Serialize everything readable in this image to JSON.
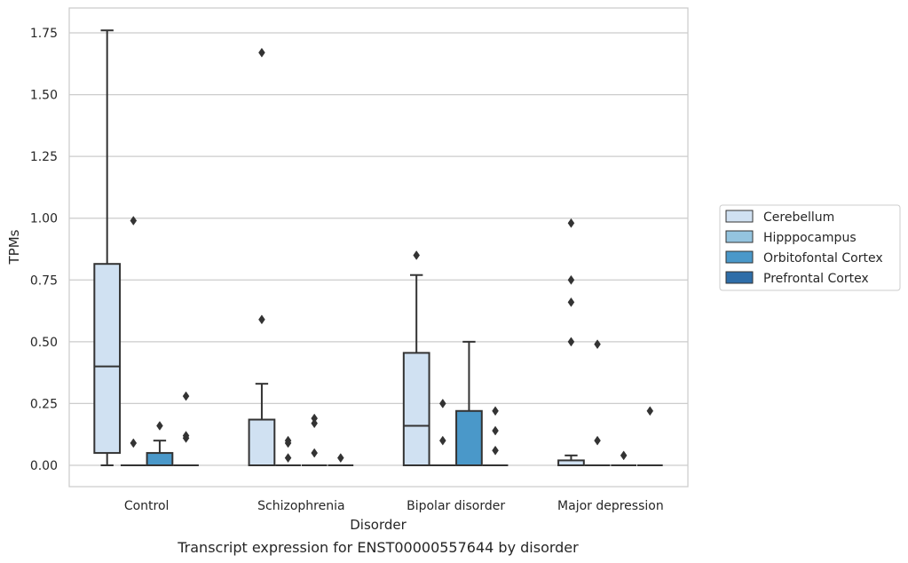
{
  "chart_data": {
    "type": "box",
    "caption": "Transcript expression for ENST00000557644 by disorder",
    "xlabel": "Disorder",
    "ylabel": "TPMs",
    "ylim": [
      -0.085,
      1.85
    ],
    "yticks": [
      0.0,
      0.25,
      0.5,
      0.75,
      1.0,
      1.25,
      1.5,
      1.75
    ],
    "ytick_labels": [
      "0.00",
      "0.25",
      "0.50",
      "0.75",
      "1.00",
      "1.25",
      "1.50",
      "1.75"
    ],
    "grid": "horizontal",
    "legend_position": "right",
    "categories": [
      "Control",
      "Schizophrenia",
      "Bipolar disorder",
      "Major depression"
    ],
    "series": [
      {
        "name": "Cerebellum",
        "color": "#d0e1f2",
        "boxes": [
          {
            "whislo": 0.0,
            "q1": 0.05,
            "med": 0.4,
            "q3": 0.815,
            "whishi": 1.76,
            "fliers": []
          },
          {
            "whislo": 0.0,
            "q1": 0.0,
            "med": 0.0,
            "q3": 0.185,
            "whishi": 0.33,
            "fliers": [
              0.59,
              1.67
            ]
          },
          {
            "whislo": 0.0,
            "q1": 0.0,
            "med": 0.16,
            "q3": 0.455,
            "whishi": 0.77,
            "fliers": [
              0.85
            ]
          },
          {
            "whislo": 0.0,
            "q1": 0.0,
            "med": 0.0,
            "q3": 0.02,
            "whishi": 0.04,
            "fliers": [
              0.5,
              0.66,
              0.75,
              0.98
            ]
          }
        ]
      },
      {
        "name": "Hipppocampus",
        "color": "#94c4df",
        "boxes": [
          {
            "whislo": 0.0,
            "q1": 0.0,
            "med": 0.0,
            "q3": 0.0,
            "whishi": 0.0,
            "fliers": [
              0.09,
              0.99
            ]
          },
          {
            "whislo": 0.0,
            "q1": 0.0,
            "med": 0.0,
            "q3": 0.0,
            "whishi": 0.0,
            "fliers": [
              0.03,
              0.09,
              0.1
            ]
          },
          {
            "whislo": 0.0,
            "q1": 0.0,
            "med": 0.0,
            "q3": 0.0,
            "whishi": 0.0,
            "fliers": [
              0.1,
              0.25
            ]
          },
          {
            "whislo": 0.0,
            "q1": 0.0,
            "med": 0.0,
            "q3": 0.0,
            "whishi": 0.0,
            "fliers": [
              0.1,
              0.49
            ]
          }
        ]
      },
      {
        "name": "Orbitofontal Cortex",
        "color": "#4a98c9",
        "boxes": [
          {
            "whislo": 0.0,
            "q1": 0.0,
            "med": 0.0,
            "q3": 0.05,
            "whishi": 0.1,
            "fliers": [
              0.16
            ]
          },
          {
            "whislo": 0.0,
            "q1": 0.0,
            "med": 0.0,
            "q3": 0.0,
            "whishi": 0.0,
            "fliers": [
              0.05,
              0.17,
              0.19
            ]
          },
          {
            "whislo": 0.0,
            "q1": 0.0,
            "med": 0.0,
            "q3": 0.22,
            "whishi": 0.5,
            "fliers": []
          },
          {
            "whislo": 0.0,
            "q1": 0.0,
            "med": 0.0,
            "q3": 0.0,
            "whishi": 0.0,
            "fliers": [
              0.04
            ]
          }
        ]
      },
      {
        "name": "Prefrontal Cortex",
        "color": "#2e6da8",
        "boxes": [
          {
            "whislo": 0.0,
            "q1": 0.0,
            "med": 0.0,
            "q3": 0.0,
            "whishi": 0.0,
            "fliers": [
              0.11,
              0.12,
              0.28
            ]
          },
          {
            "whislo": 0.0,
            "q1": 0.0,
            "med": 0.0,
            "q3": 0.0,
            "whishi": 0.0,
            "fliers": [
              0.03
            ]
          },
          {
            "whislo": 0.0,
            "q1": 0.0,
            "med": 0.0,
            "q3": 0.0,
            "whishi": 0.0,
            "fliers": [
              0.06,
              0.14,
              0.22
            ]
          },
          {
            "whislo": 0.0,
            "q1": 0.0,
            "med": 0.0,
            "q3": 0.0,
            "whishi": 0.0,
            "fliers": [
              0.22
            ]
          }
        ]
      }
    ]
  }
}
